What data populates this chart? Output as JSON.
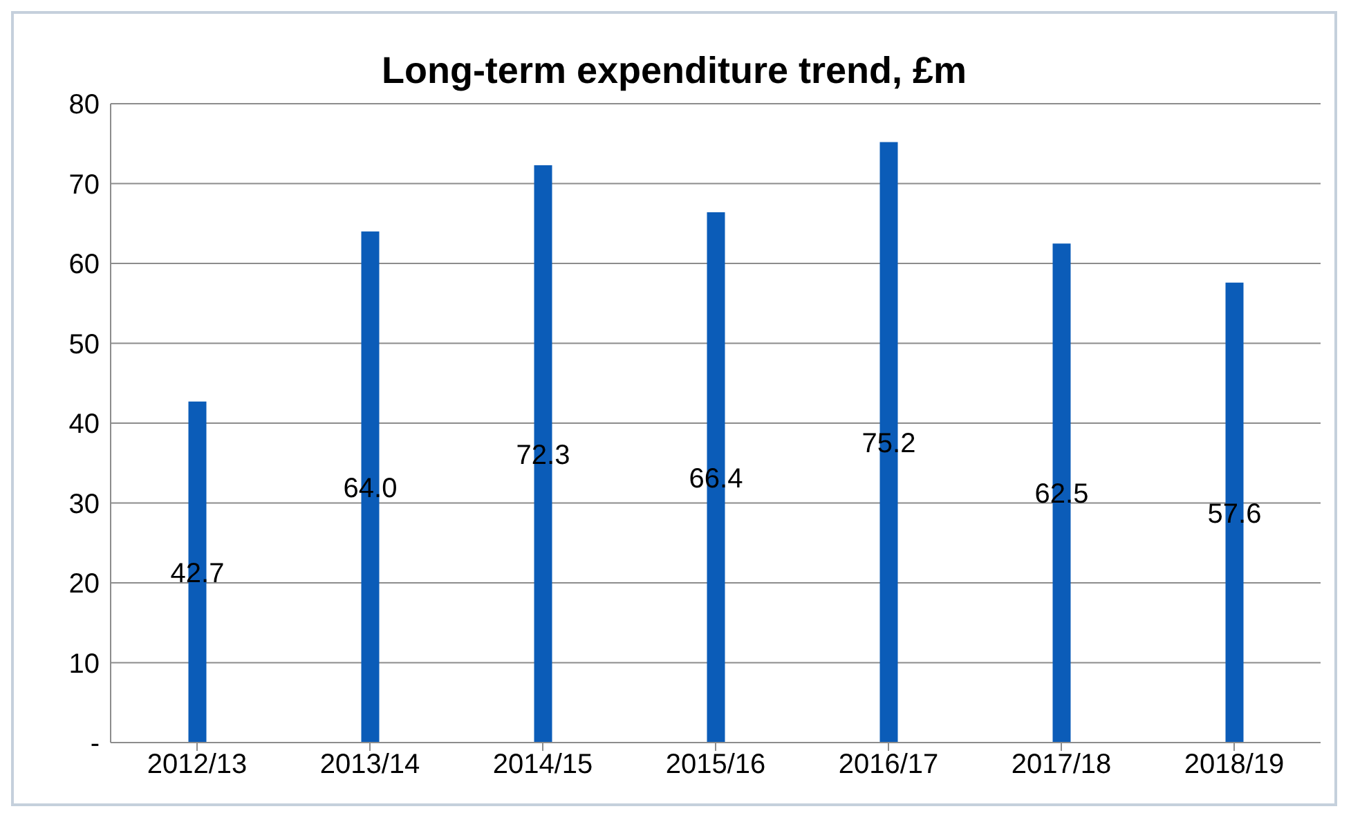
{
  "chart_data": {
    "type": "bar",
    "title": "Long-term expenditure trend, £m",
    "categories": [
      "2012/13",
      "2013/14",
      "2014/15",
      "2015/16",
      "2016/17",
      "2017/18",
      "2018/19"
    ],
    "values": [
      42.7,
      64.0,
      72.3,
      66.4,
      75.2,
      62.5,
      57.6
    ],
    "value_labels": [
      "42.7",
      "64.0",
      "72.3",
      "66.4",
      "75.2",
      "62.5",
      "57.6"
    ],
    "color": "#0b5cb8",
    "ylim": [
      0,
      80
    ],
    "yticks": [
      {
        "value": 0,
        "label": "-"
      },
      10,
      20,
      30,
      40,
      50,
      60,
      70,
      80
    ],
    "grid": "y",
    "legend": false
  }
}
